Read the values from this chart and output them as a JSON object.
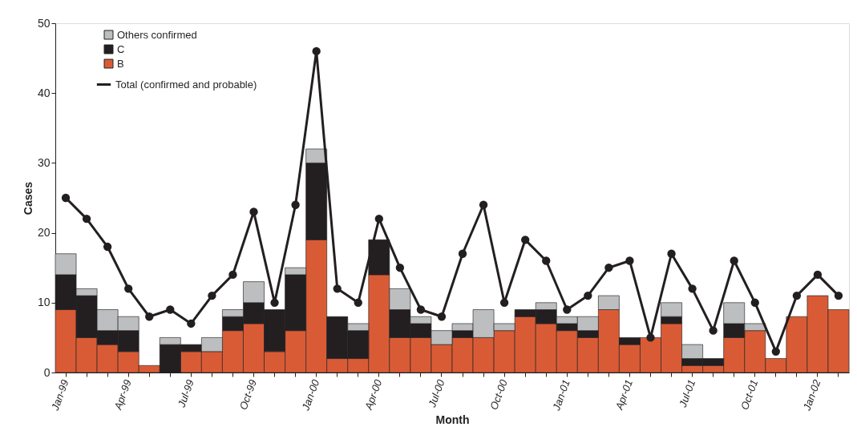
{
  "chart_data": {
    "type": "bar",
    "stacked": true,
    "xlabel": "Month",
    "ylabel": "Cases",
    "categories": [
      "Jan-99",
      null,
      null,
      "Apr-99",
      null,
      null,
      "Jul-99",
      null,
      null,
      "Oct-99",
      null,
      null,
      "Jan-00",
      null,
      null,
      "Apr-00",
      null,
      null,
      "Jul-00",
      null,
      null,
      "Oct-00",
      null,
      null,
      "Jan-01",
      null,
      null,
      "Apr-01",
      null,
      null,
      "Jul-01",
      null,
      null,
      "Oct-01",
      null,
      null,
      "Jan-02",
      null
    ],
    "ylim": [
      0,
      50
    ],
    "yticks": [
      0,
      10,
      20,
      30,
      40,
      50
    ],
    "grid": false,
    "legend": "top left",
    "series": [
      {
        "name": "B",
        "color": "#d95b36",
        "values": [
          9,
          5,
          4,
          3,
          1,
          0,
          3,
          3,
          6,
          7,
          3,
          6,
          19,
          2,
          2,
          14,
          5,
          5,
          4,
          5,
          5,
          6,
          8,
          7,
          6,
          5,
          9,
          4,
          5,
          7,
          1,
          1,
          5,
          6,
          2,
          8,
          11,
          9
        ]
      },
      {
        "name": "C",
        "color": "#231f20",
        "values": [
          5,
          6,
          2,
          3,
          0,
          4,
          1,
          0,
          2,
          3,
          6,
          8,
          11,
          6,
          4,
          5,
          4,
          2,
          0,
          1,
          0,
          0,
          1,
          2,
          1,
          1,
          0,
          1,
          0,
          1,
          1,
          1,
          2,
          0,
          0,
          0,
          0,
          0
        ]
      },
      {
        "name": "Others confirmed",
        "color": "#bcbec0",
        "values": [
          3,
          1,
          3,
          2,
          0,
          1,
          0,
          2,
          1,
          3,
          0,
          1,
          2,
          0,
          1,
          0,
          3,
          1,
          2,
          1,
          4,
          1,
          0,
          1,
          1,
          2,
          2,
          0,
          0,
          2,
          2,
          0,
          3,
          1,
          0,
          0,
          0,
          0
        ]
      },
      {
        "name": "Total (confirmed and probable)",
        "type": "line",
        "color": "#231f20",
        "marker": "circle",
        "values": [
          25,
          22,
          18,
          12,
          8,
          9,
          7,
          11,
          14,
          23,
          10,
          24,
          46,
          12,
          10,
          22,
          15,
          9,
          8,
          17,
          24,
          10,
          19,
          16,
          9,
          11,
          15,
          16,
          5,
          17,
          12,
          6,
          16,
          10,
          3,
          11,
          14,
          11
        ]
      }
    ]
  }
}
